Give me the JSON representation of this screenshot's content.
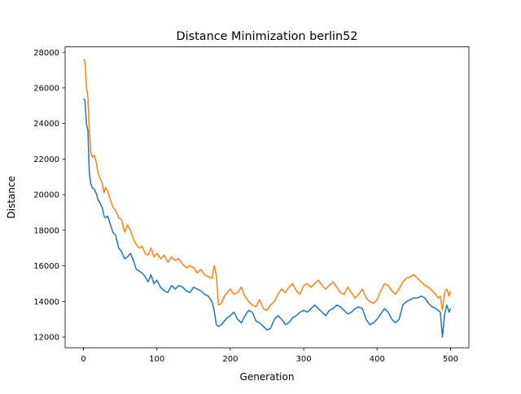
{
  "chart_data": {
    "type": "line",
    "title": "Distance Minimization berlin52",
    "xlabel": "Generation",
    "ylabel": "Distance",
    "xlim": [
      -25,
      525
    ],
    "ylim": [
      11400,
      28300
    ],
    "xticks": [
      0,
      100,
      200,
      300,
      400,
      500
    ],
    "yticks": [
      12000,
      14000,
      16000,
      18000,
      20000,
      22000,
      24000,
      26000,
      28000
    ],
    "grid": false,
    "legend": "none",
    "series": [
      {
        "color": "#1f77b4",
        "x": [
          0,
          2,
          4,
          6,
          8,
          10,
          12,
          15,
          18,
          20,
          23,
          26,
          28,
          30,
          33,
          36,
          40,
          44,
          48,
          52,
          56,
          60,
          64,
          68,
          72,
          76,
          80,
          84,
          88,
          92,
          96,
          100,
          105,
          110,
          115,
          120,
          125,
          130,
          135,
          140,
          145,
          150,
          155,
          160,
          165,
          170,
          175,
          178,
          181,
          184,
          188,
          192,
          196,
          200,
          205,
          210,
          215,
          220,
          225,
          230,
          235,
          240,
          245,
          250,
          255,
          260,
          265,
          270,
          275,
          280,
          285,
          290,
          295,
          300,
          305,
          310,
          315,
          320,
          325,
          330,
          335,
          340,
          345,
          350,
          355,
          360,
          365,
          370,
          375,
          380,
          385,
          390,
          395,
          400,
          405,
          410,
          415,
          420,
          425,
          430,
          435,
          440,
          445,
          450,
          455,
          460,
          465,
          470,
          475,
          480,
          483,
          486,
          489,
          492,
          495,
          498,
          500
        ],
        "y": [
          25400,
          25300,
          24000,
          23600,
          21200,
          20600,
          20400,
          20300,
          20000,
          19700,
          19500,
          19200,
          18800,
          18700,
          18800,
          18400,
          17900,
          17700,
          17000,
          16800,
          16400,
          16500,
          16700,
          16300,
          15800,
          15700,
          15600,
          15400,
          15100,
          15500,
          15000,
          15200,
          14800,
          14600,
          14500,
          14900,
          14700,
          14900,
          14800,
          14600,
          14500,
          14800,
          14700,
          14600,
          14400,
          14300,
          14000,
          13500,
          12700,
          12600,
          12700,
          12900,
          13100,
          13200,
          13400,
          13000,
          12800,
          13200,
          13500,
          13400,
          12900,
          12800,
          12600,
          12400,
          12500,
          13000,
          13200,
          13000,
          12700,
          12800,
          13100,
          13200,
          13400,
          13500,
          13400,
          13600,
          13800,
          13600,
          13400,
          13200,
          13500,
          13600,
          13800,
          13700,
          13500,
          13300,
          13400,
          13600,
          13700,
          13600,
          13000,
          12700,
          12800,
          13000,
          13300,
          13600,
          13400,
          13000,
          12800,
          13000,
          13800,
          14000,
          14100,
          14200,
          14200,
          14300,
          14200,
          13900,
          13700,
          13600,
          13500,
          13400,
          12000,
          13300,
          13800,
          13400,
          13600
        ]
      },
      {
        "color": "#ff7f0e",
        "x": [
          0,
          2,
          4,
          6,
          8,
          10,
          12,
          15,
          18,
          20,
          23,
          26,
          28,
          30,
          33,
          36,
          40,
          44,
          48,
          52,
          56,
          60,
          64,
          68,
          72,
          76,
          80,
          84,
          88,
          92,
          96,
          100,
          105,
          110,
          115,
          120,
          125,
          130,
          135,
          140,
          145,
          150,
          155,
          160,
          165,
          170,
          175,
          178,
          181,
          184,
          188,
          192,
          196,
          200,
          205,
          210,
          215,
          220,
          225,
          230,
          235,
          240,
          245,
          250,
          255,
          260,
          265,
          270,
          275,
          280,
          285,
          290,
          295,
          300,
          305,
          310,
          315,
          320,
          325,
          330,
          335,
          340,
          345,
          350,
          355,
          360,
          365,
          370,
          375,
          380,
          385,
          390,
          395,
          400,
          405,
          410,
          415,
          420,
          425,
          430,
          435,
          440,
          445,
          450,
          455,
          460,
          465,
          470,
          475,
          480,
          483,
          486,
          489,
          492,
          495,
          498,
          500
        ],
        "y": [
          27600,
          27500,
          26100,
          25500,
          23600,
          22400,
          22100,
          22200,
          21700,
          21200,
          20900,
          20600,
          20100,
          20400,
          20200,
          19800,
          19300,
          19100,
          18700,
          18600,
          17900,
          18300,
          18000,
          17500,
          17200,
          17000,
          17100,
          16700,
          16600,
          17000,
          16500,
          16700,
          16400,
          16600,
          16200,
          16500,
          16300,
          16400,
          16100,
          15900,
          16000,
          15900,
          15600,
          15800,
          15500,
          15400,
          15300,
          16000,
          15500,
          13800,
          13900,
          14300,
          14500,
          14700,
          14400,
          14500,
          14800,
          14300,
          14000,
          13800,
          13700,
          14100,
          13600,
          13500,
          13800,
          14000,
          14400,
          14700,
          14500,
          14800,
          15000,
          14600,
          14400,
          14900,
          15000,
          14800,
          15000,
          15200,
          14900,
          14700,
          14900,
          15100,
          14800,
          14500,
          14400,
          14800,
          14500,
          14200,
          14400,
          14700,
          14200,
          14000,
          13900,
          14100,
          14600,
          15000,
          14900,
          14600,
          14400,
          14700,
          15100,
          15300,
          15400,
          15500,
          15300,
          15100,
          14900,
          14800,
          14600,
          14400,
          14200,
          14300,
          13500,
          14500,
          14700,
          14300,
          14600
        ]
      }
    ]
  }
}
